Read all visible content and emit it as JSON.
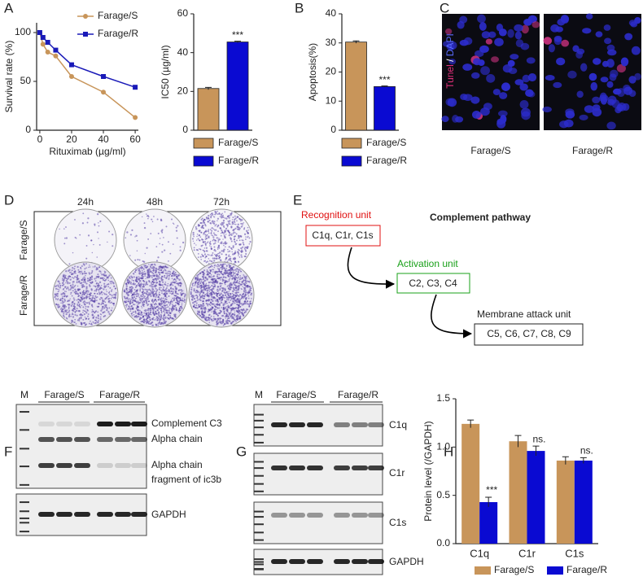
{
  "panel_labels": [
    "A",
    "B",
    "C",
    "D",
    "E",
    "F",
    "G",
    "H"
  ],
  "chart_data": [
    {
      "type": "line",
      "xlabel": "Rituximab (µg/ml)",
      "ylabel": "Survival rate (%)",
      "x": [
        0,
        2,
        5,
        10,
        20,
        40,
        60
      ],
      "series": [
        {
          "name": "Farage/S",
          "color": "#c8955a",
          "marker": "circle",
          "values": [
            100,
            88,
            80,
            76,
            55,
            39,
            13
          ]
        },
        {
          "name": "Farage/R",
          "color": "#1a1ab8",
          "marker": "square",
          "values": [
            100,
            95,
            90,
            82,
            67,
            55,
            44
          ]
        }
      ],
      "xlim": [
        -2,
        62
      ],
      "ylim": [
        0,
        110
      ],
      "xticks": [
        0,
        20,
        40,
        60
      ],
      "yticks": [
        0,
        50,
        100
      ]
    },
    {
      "type": "bar",
      "ylabel": "IC50 (µg/ml)",
      "categories": [
        "Farage/S",
        "Farage/R"
      ],
      "values": [
        21.5,
        45.5
      ],
      "errors": [
        0.6,
        0.4
      ],
      "colors": [
        "#c8955a",
        "#0a0ad2"
      ],
      "annotations": [
        null,
        "***"
      ],
      "ylim": [
        0,
        60
      ],
      "yticks": [
        0,
        20,
        40,
        60
      ]
    },
    {
      "type": "bar",
      "ylabel": "Apoptosis(%)",
      "categories": [
        "Farage/S",
        "Farage/R"
      ],
      "values": [
        30.3,
        15
      ],
      "errors": [
        0.4,
        0.2
      ],
      "colors": [
        "#c8955a",
        "#0a0ad2"
      ],
      "annotations": [
        null,
        "***"
      ],
      "ylim": [
        0,
        40
      ],
      "yticks": [
        0,
        10,
        20,
        30,
        40
      ]
    },
    {
      "type": "grouped_bar",
      "ylabel": "Protein level (/GAPDH)",
      "categories": [
        "C1q",
        "C1r",
        "C1s"
      ],
      "series": [
        {
          "name": "Farage/S",
          "color": "#c8955a",
          "values": [
            1.24,
            1.06,
            0.86
          ],
          "errors": [
            0.04,
            0.06,
            0.04
          ],
          "annotations": [
            null,
            null,
            null
          ]
        },
        {
          "name": "Farage/R",
          "color": "#0a0ad2",
          "values": [
            0.43,
            0.96,
            0.86
          ],
          "errors": [
            0.05,
            0.05,
            0.03
          ],
          "annotations": [
            "***",
            "ns.",
            "ns."
          ]
        }
      ],
      "ylim": [
        0,
        1.5
      ],
      "yticks": [
        {
          "value": 0,
          "label": "0.0"
        },
        0.5,
        {
          "value": 1,
          "label": "1.0"
        },
        1.5
      ]
    }
  ],
  "panel_c": {
    "stain_labels": [
      "Tunel",
      "/",
      "DAPI"
    ],
    "images": [
      "Farage/S",
      "Farage/R"
    ]
  },
  "panel_d": {
    "columns": [
      "24h",
      "48h",
      "72h"
    ],
    "rows": [
      "Farage/S",
      "Farage/R"
    ]
  },
  "panel_e": {
    "title": "Complement pathway",
    "units": [
      {
        "name": "Recognition unit",
        "members": "C1q, C1r, C1s"
      },
      {
        "name": "Activation unit",
        "members": "C2, C3, C4"
      },
      {
        "name": "Membrane attack unit",
        "members": "C5, C6, C7, C8, C9"
      }
    ]
  },
  "panel_f": {
    "marker": "M",
    "groups": [
      "Farage/S",
      "Farage/R"
    ],
    "labels": [
      "Complement C3",
      "Alpha chain",
      "Alpha chain",
      "fragment of ic3b",
      "GAPDH"
    ]
  },
  "panel_g": {
    "marker": "M",
    "groups": [
      "Farage/S",
      "Farage/R"
    ],
    "labels": [
      "C1q",
      "C1r",
      "C1s",
      "GAPDH"
    ]
  }
}
